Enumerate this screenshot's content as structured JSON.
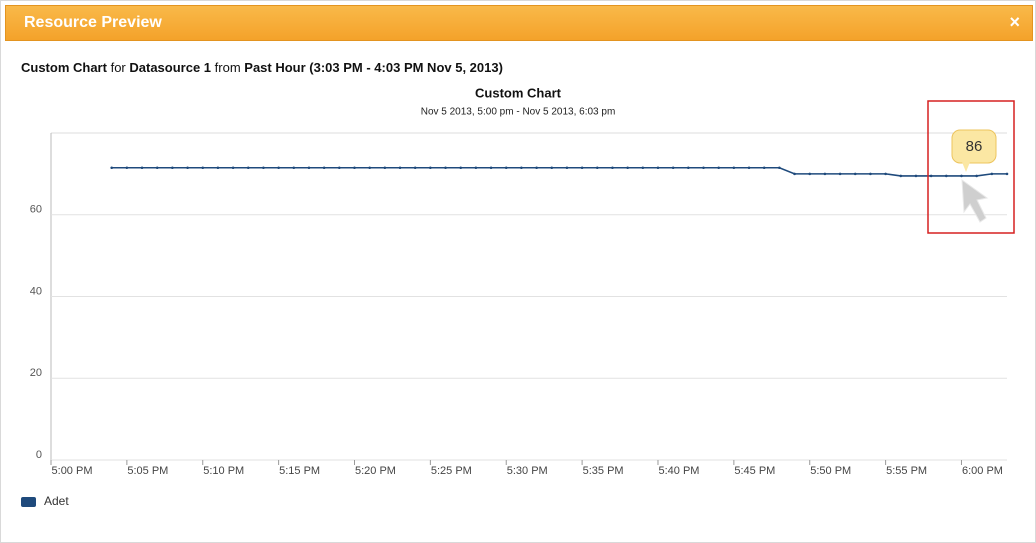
{
  "dialog": {
    "title": "Resource Preview",
    "close": "×"
  },
  "header": {
    "parts": [
      "Custom Chart",
      "for",
      "Datasource 1",
      "from",
      "Past Hour (3:03 PM - 4:03 PM Nov 5, 2013)"
    ]
  },
  "chart_data": {
    "type": "line",
    "title": "Custom Chart",
    "subtitle": "Nov 5 2013, 5:00 pm - Nov 5 2013, 6:03 pm",
    "annotation": "86",
    "x": [
      "5:04 PM",
      "5:05 PM",
      "5:06 PM",
      "5:07 PM",
      "5:08 PM",
      "5:09 PM",
      "5:10 PM",
      "5:11 PM",
      "5:12 PM",
      "5:13 PM",
      "5:14 PM",
      "5:15 PM",
      "5:16 PM",
      "5:17 PM",
      "5:18 PM",
      "5:19 PM",
      "5:20 PM",
      "5:21 PM",
      "5:22 PM",
      "5:23 PM",
      "5:24 PM",
      "5:25 PM",
      "5:26 PM",
      "5:27 PM",
      "5:28 PM",
      "5:29 PM",
      "5:30 PM",
      "5:31 PM",
      "5:32 PM",
      "5:33 PM",
      "5:34 PM",
      "5:35 PM",
      "5:36 PM",
      "5:37 PM",
      "5:38 PM",
      "5:39 PM",
      "5:40 PM",
      "5:41 PM",
      "5:42 PM",
      "5:43 PM",
      "5:44 PM",
      "5:45 PM",
      "5:46 PM",
      "5:47 PM",
      "5:48 PM",
      "5:49 PM",
      "5:50 PM",
      "5:51 PM",
      "5:52 PM",
      "5:53 PM",
      "5:54 PM",
      "5:55 PM",
      "5:56 PM",
      "5:57 PM",
      "5:58 PM",
      "5:59 PM",
      "6:00 PM",
      "6:01 PM",
      "6:02 PM",
      "6:03 PM"
    ],
    "series": [
      {
        "name": "Adet",
        "color": "#1f4a7c",
        "values": [
          71.5,
          71.5,
          71.5,
          71.5,
          71.5,
          71.5,
          71.5,
          71.5,
          71.5,
          71.5,
          71.5,
          71.5,
          71.5,
          71.5,
          71.5,
          71.5,
          71.5,
          71.5,
          71.5,
          71.5,
          71.5,
          71.5,
          71.5,
          71.5,
          71.5,
          71.5,
          71.5,
          71.5,
          71.5,
          71.5,
          71.5,
          71.5,
          71.5,
          71.5,
          71.5,
          71.5,
          71.5,
          71.5,
          71.5,
          71.5,
          71.5,
          71.5,
          71.5,
          71.5,
          71.5,
          70,
          70,
          70,
          70,
          70,
          70,
          70,
          69.5,
          69.5,
          69.5,
          69.5,
          69.5,
          69.5,
          70,
          70
        ]
      }
    ],
    "xlim": [
      "5:00 PM",
      "6:03 PM"
    ],
    "xticks": [
      "5:00 PM",
      "5:05 PM",
      "5:10 PM",
      "5:15 PM",
      "5:20 PM",
      "5:25 PM",
      "5:30 PM",
      "5:35 PM",
      "5:40 PM",
      "5:45 PM",
      "5:50 PM",
      "5:55 PM",
      "6:00 PM"
    ],
    "ylim": [
      0,
      80
    ],
    "yticks": [
      0,
      20,
      40,
      60
    ],
    "grid": true
  }
}
